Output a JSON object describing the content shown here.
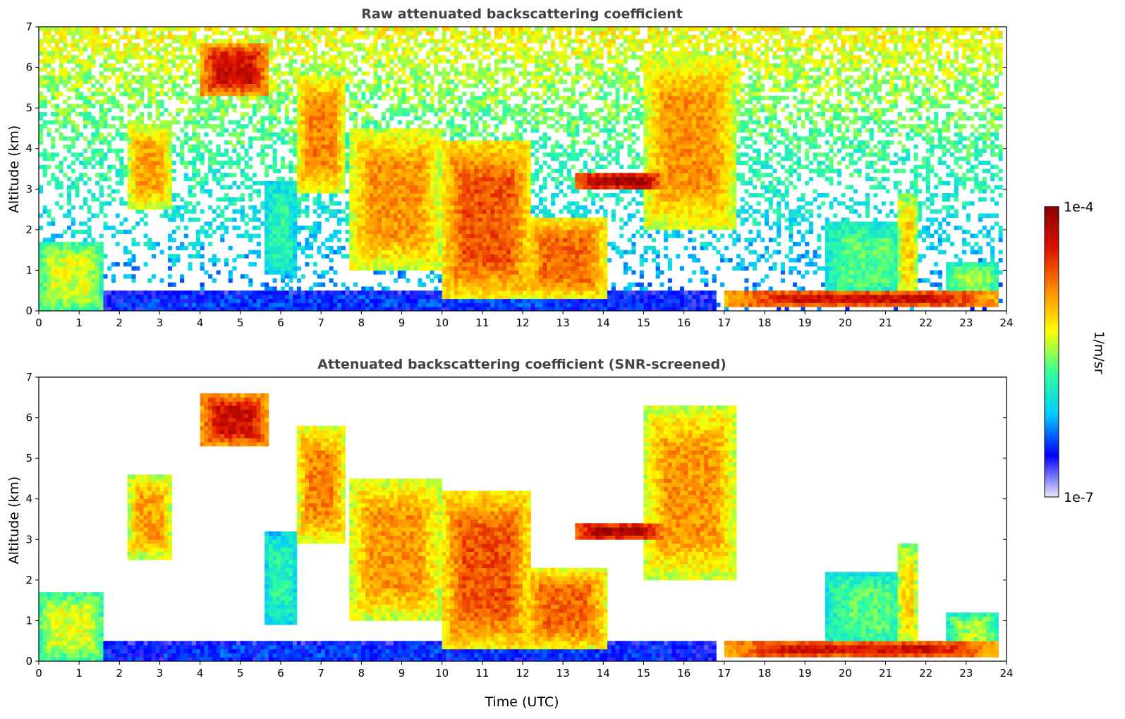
{
  "chart_data": [
    {
      "type": "heatmap",
      "title": "Raw attenuated backscattering coefficient",
      "xlabel": "",
      "ylabel": "Altitude (km)",
      "xlim": [
        0,
        24
      ],
      "ylim": [
        0,
        7
      ],
      "xticks": [
        "0",
        "1",
        "2",
        "3",
        "4",
        "5",
        "6",
        "7",
        "8",
        "9",
        "10",
        "11",
        "12",
        "13",
        "14",
        "15",
        "16",
        "17",
        "18",
        "19",
        "20",
        "21",
        "22",
        "23",
        "24"
      ],
      "yticks": [
        "0",
        "1",
        "2",
        "3",
        "4",
        "5",
        "6",
        "7"
      ],
      "noise": "high",
      "features": [
        {
          "desc": "boundary layer aerosol",
          "t0": 0.0,
          "t1": 16.8,
          "z0": 0.0,
          "z1": 0.45,
          "level": 0.18
        },
        {
          "desc": "low cloud",
          "t0": 0.0,
          "t1": 1.6,
          "z0": 0.0,
          "z1": 1.7,
          "level": 0.55
        },
        {
          "desc": "cirrus fall streak",
          "t0": 2.2,
          "t1": 3.3,
          "z0": 2.5,
          "z1": 4.6,
          "level": 0.68
        },
        {
          "desc": "cirrus",
          "t0": 4.0,
          "t1": 5.7,
          "z0": 5.3,
          "z1": 6.6,
          "level": 0.88
        },
        {
          "desc": "fall streak",
          "t0": 5.6,
          "t1": 6.4,
          "z0": 0.9,
          "z1": 3.2,
          "level": 0.4
        },
        {
          "desc": "cirrus streak",
          "t0": 6.4,
          "t1": 7.6,
          "z0": 2.9,
          "z1": 5.8,
          "level": 0.72
        },
        {
          "desc": "precipitating cloud",
          "t0": 7.7,
          "t1": 10.0,
          "z0": 1.0,
          "z1": 4.5,
          "level": 0.7
        },
        {
          "desc": "precipitating cloud",
          "t0": 10.0,
          "t1": 12.2,
          "z0": 0.3,
          "z1": 4.2,
          "level": 0.78
        },
        {
          "desc": "convective cells",
          "t0": 12.0,
          "t1": 14.1,
          "z0": 0.3,
          "z1": 2.3,
          "level": 0.75
        },
        {
          "desc": "mid-level cloud",
          "t0": 13.3,
          "t1": 15.5,
          "z0": 3.0,
          "z1": 3.4,
          "level": 0.95
        },
        {
          "desc": "cirrus streak",
          "t0": 15.0,
          "t1": 17.3,
          "z0": 2.0,
          "z1": 6.3,
          "level": 0.7
        },
        {
          "desc": "low stratus",
          "t0": 17.0,
          "t1": 23.8,
          "z0": 0.1,
          "z1": 0.5,
          "level": 0.88
        },
        {
          "desc": "low cloud",
          "t0": 19.5,
          "t1": 21.6,
          "z0": 0.3,
          "z1": 2.2,
          "level": 0.45
        },
        {
          "desc": "convective tower",
          "t0": 21.3,
          "t1": 21.8,
          "z0": 0.2,
          "z1": 2.9,
          "level": 0.62
        },
        {
          "desc": "low cloud",
          "t0": 22.5,
          "t1": 23.8,
          "z0": 0.2,
          "z1": 1.2,
          "level": 0.5
        }
      ]
    },
    {
      "type": "heatmap",
      "title": "Attenuated backscattering coefficient (SNR-screened)",
      "xlabel": "Time (UTC)",
      "ylabel": "Altitude (km)",
      "xlim": [
        0,
        24
      ],
      "ylim": [
        0,
        7
      ],
      "xticks": [
        "0",
        "1",
        "2",
        "3",
        "4",
        "5",
        "6",
        "7",
        "8",
        "9",
        "10",
        "11",
        "12",
        "13",
        "14",
        "15",
        "16",
        "17",
        "18",
        "19",
        "20",
        "21",
        "22",
        "23",
        "24"
      ],
      "yticks": [
        "0",
        "1",
        "2",
        "3",
        "4",
        "5",
        "6",
        "7"
      ],
      "noise": "none",
      "features": "same as raw panel with low-SNR pixels removed"
    }
  ],
  "colorbar": {
    "label": "1/m/sr",
    "max_label": "1e-4",
    "min_label": "1e-7",
    "colormap": [
      "#e8e8f8",
      "#0000ff",
      "#00ccff",
      "#33ff99",
      "#ffff00",
      "#ff8800",
      "#dd1100",
      "#880000"
    ]
  }
}
